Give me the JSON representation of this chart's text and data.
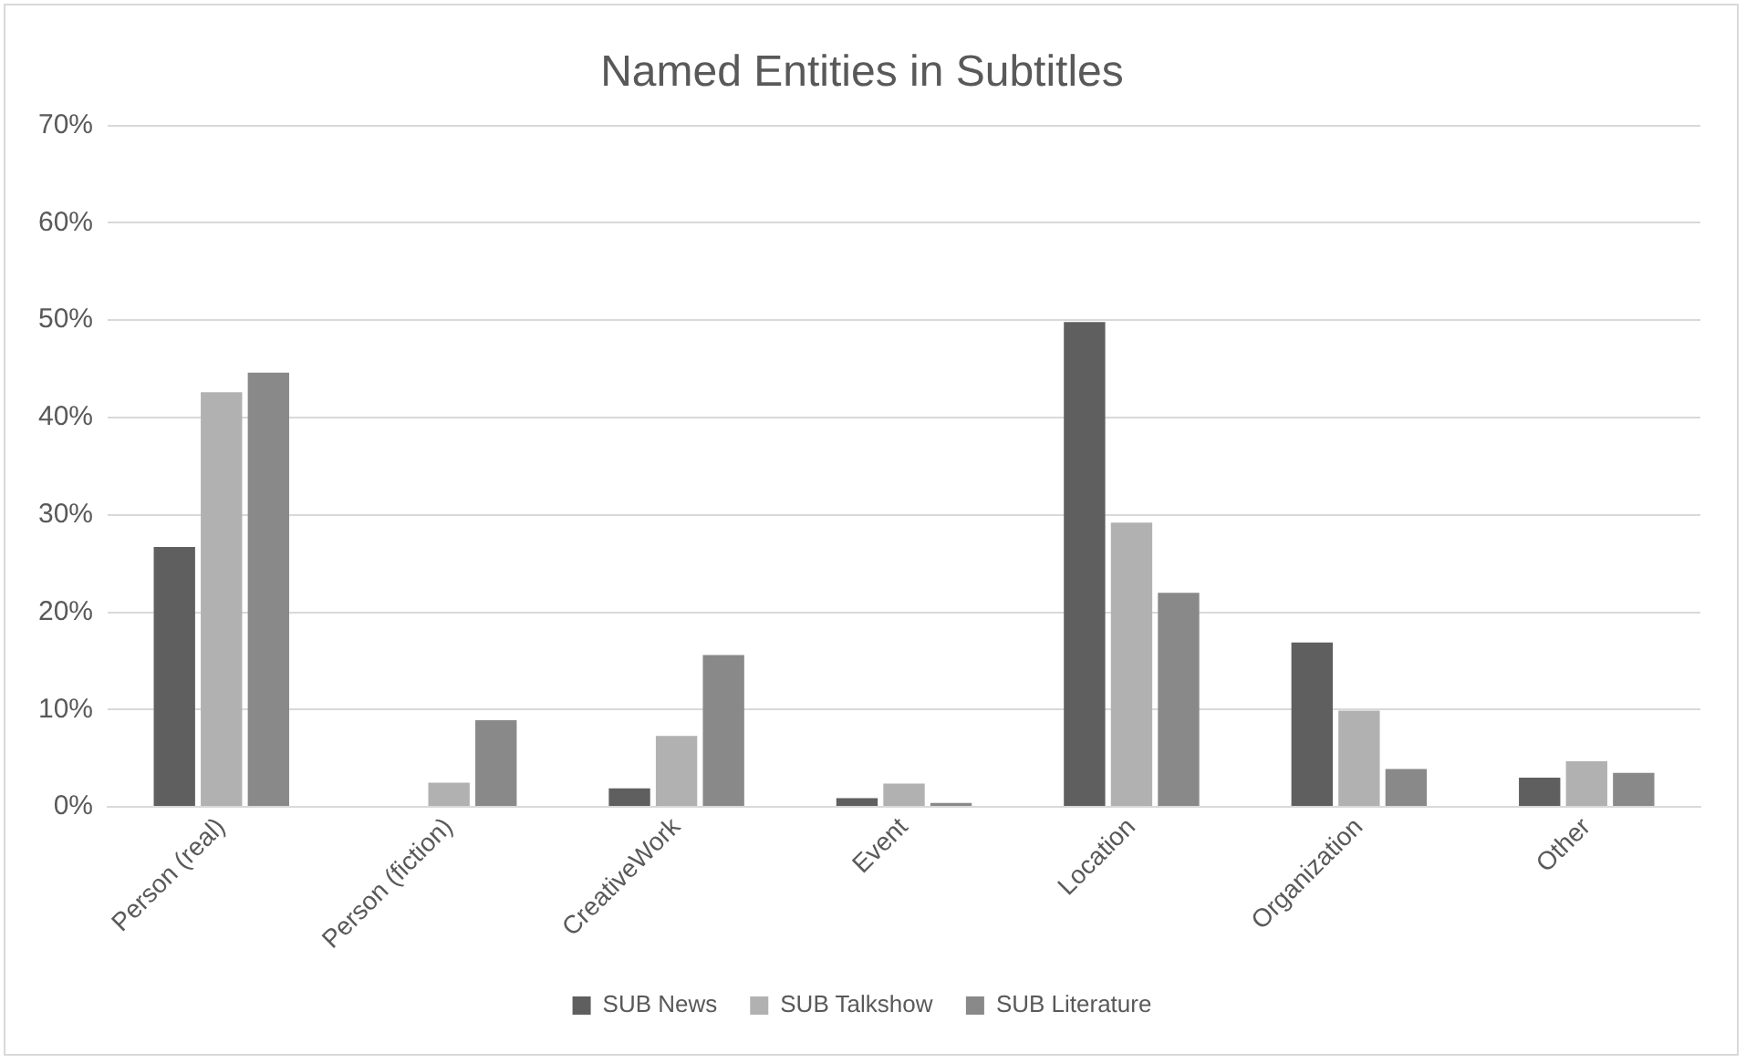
{
  "chart_data": {
    "type": "bar",
    "title": "Named Entities in Subtitles",
    "categories": [
      "Person (real)",
      "Person (fiction)",
      "CreativeWork",
      "Event",
      "Location",
      "Organization",
      "Other"
    ],
    "series": [
      {
        "name": "SUB News",
        "color": "#5f5f5f",
        "values": [
          26.7,
          0,
          1.9,
          0.9,
          49.8,
          16.9,
          3.0
        ]
      },
      {
        "name": "SUB Talkshow",
        "color": "#b1b1b1",
        "values": [
          42.6,
          2.5,
          7.3,
          2.4,
          29.2,
          9.9,
          4.7
        ]
      },
      {
        "name": "SUB Literature",
        "color": "#898989",
        "values": [
          44.6,
          8.9,
          15.6,
          0.4,
          22.0,
          3.9,
          3.5
        ]
      }
    ],
    "ylim": [
      0,
      70
    ],
    "yticks": [
      {
        "value": 0,
        "label": "0%"
      },
      {
        "value": 10,
        "label": "10%"
      },
      {
        "value": 20,
        "label": "20%"
      },
      {
        "value": 30,
        "label": "30%"
      },
      {
        "value": 40,
        "label": "40%"
      },
      {
        "value": 50,
        "label": "50%"
      },
      {
        "value": 60,
        "label": "60%"
      },
      {
        "value": 70,
        "label": "70%"
      }
    ],
    "grid": "y",
    "legend": "bottom"
  }
}
